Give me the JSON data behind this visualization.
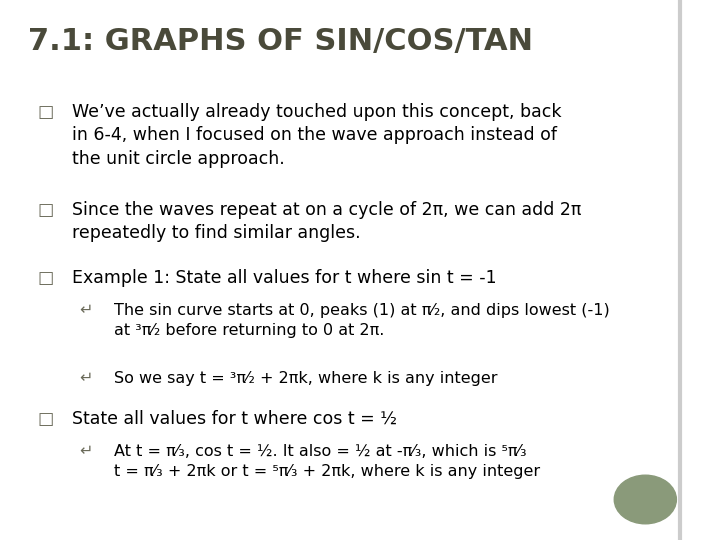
{
  "title": "7.1: GRAPHS OF SIN/COS/TAN",
  "background_color": "#ffffff",
  "title_color": "#4a4a3a",
  "title_fontsize": 22,
  "bullet_color": "#6b6b5a",
  "bullet_symbol": "□",
  "sub_bullet_symbol": "↵",
  "text_color": "#000000",
  "bullet_fontsize": 12.5,
  "sub_bullet_fontsize": 11.5,
  "green_circle_color": "#8a9a7a",
  "bullets": [
    {
      "level": 0,
      "text": "We’ve actually already touched upon this concept, back\nin 6-4, when I focused on the wave approach instead of\nthe unit circle approach."
    },
    {
      "level": 0,
      "text": "Since the waves repeat at on a cycle of 2π, we can add 2π\nrepeatedly to find similar angles."
    },
    {
      "level": 0,
      "text": "Example 1: State all values for t where sin t = -1"
    },
    {
      "level": 1,
      "text": "The sin curve starts at 0, peaks (1) at π⁄₂, and dips lowest (-1)\nat ³π⁄₂ before returning to 0 at 2π."
    },
    {
      "level": 1,
      "text": "So we say t = ³π⁄₂ + 2πk, where k is any integer"
    },
    {
      "level": 0,
      "text": "State all values for t where cos t = ½"
    },
    {
      "level": 1,
      "text": "At t = π⁄₃, cos t = ½. It also = ½ at -π⁄₃, which is ⁵π⁄₃\nt = π⁄₃ + 2πk or t = ⁵π⁄₃ + 2πk, where k is any integer"
    }
  ]
}
